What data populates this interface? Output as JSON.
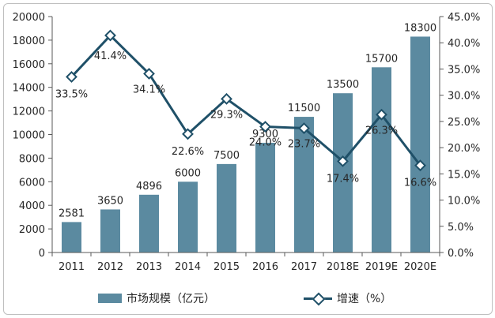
{
  "chart_data": {
    "type": "bar",
    "categories": [
      "2011",
      "2012",
      "2013",
      "2014",
      "2015",
      "2016",
      "2017",
      "2018E",
      "2019E",
      "2020E"
    ],
    "series": [
      {
        "name": "市场规模（亿元）",
        "type": "bar",
        "axis": "left",
        "color": "#5b8aa0",
        "values": [
          2581,
          3650,
          4896,
          6000,
          7500,
          9300,
          11500,
          13500,
          15700,
          18300
        ],
        "labels": [
          "2581",
          "3650",
          "4896",
          "6000",
          "7500",
          "9300",
          "11500",
          "13500",
          "15700",
          "18300"
        ]
      },
      {
        "name": "增速（%）",
        "type": "line",
        "axis": "right",
        "color": "#1f5068",
        "values": [
          33.5,
          41.4,
          34.1,
          22.6,
          29.3,
          24.0,
          23.7,
          17.4,
          26.3,
          16.6
        ],
        "labels": [
          "33.5%",
          "41.4%",
          "34.1%",
          "22.6%",
          "29.3%",
          "24.0%",
          "23.7%",
          "17.4%",
          "26.3%",
          "16.6%"
        ]
      }
    ],
    "ylim": [
      0,
      20000
    ],
    "y_ticks": [
      "0",
      "2000",
      "4000",
      "6000",
      "8000",
      "10000",
      "12000",
      "14000",
      "16000",
      "18000",
      "20000"
    ],
    "y2lim": [
      0,
      45
    ],
    "y2_ticks": [
      "0.0%",
      "5.0%",
      "10.0%",
      "15.0%",
      "20.0%",
      "25.0%",
      "30.0%",
      "35.0%",
      "40.0%",
      "45.0%"
    ],
    "grid": false,
    "legend_position": "bottom"
  }
}
